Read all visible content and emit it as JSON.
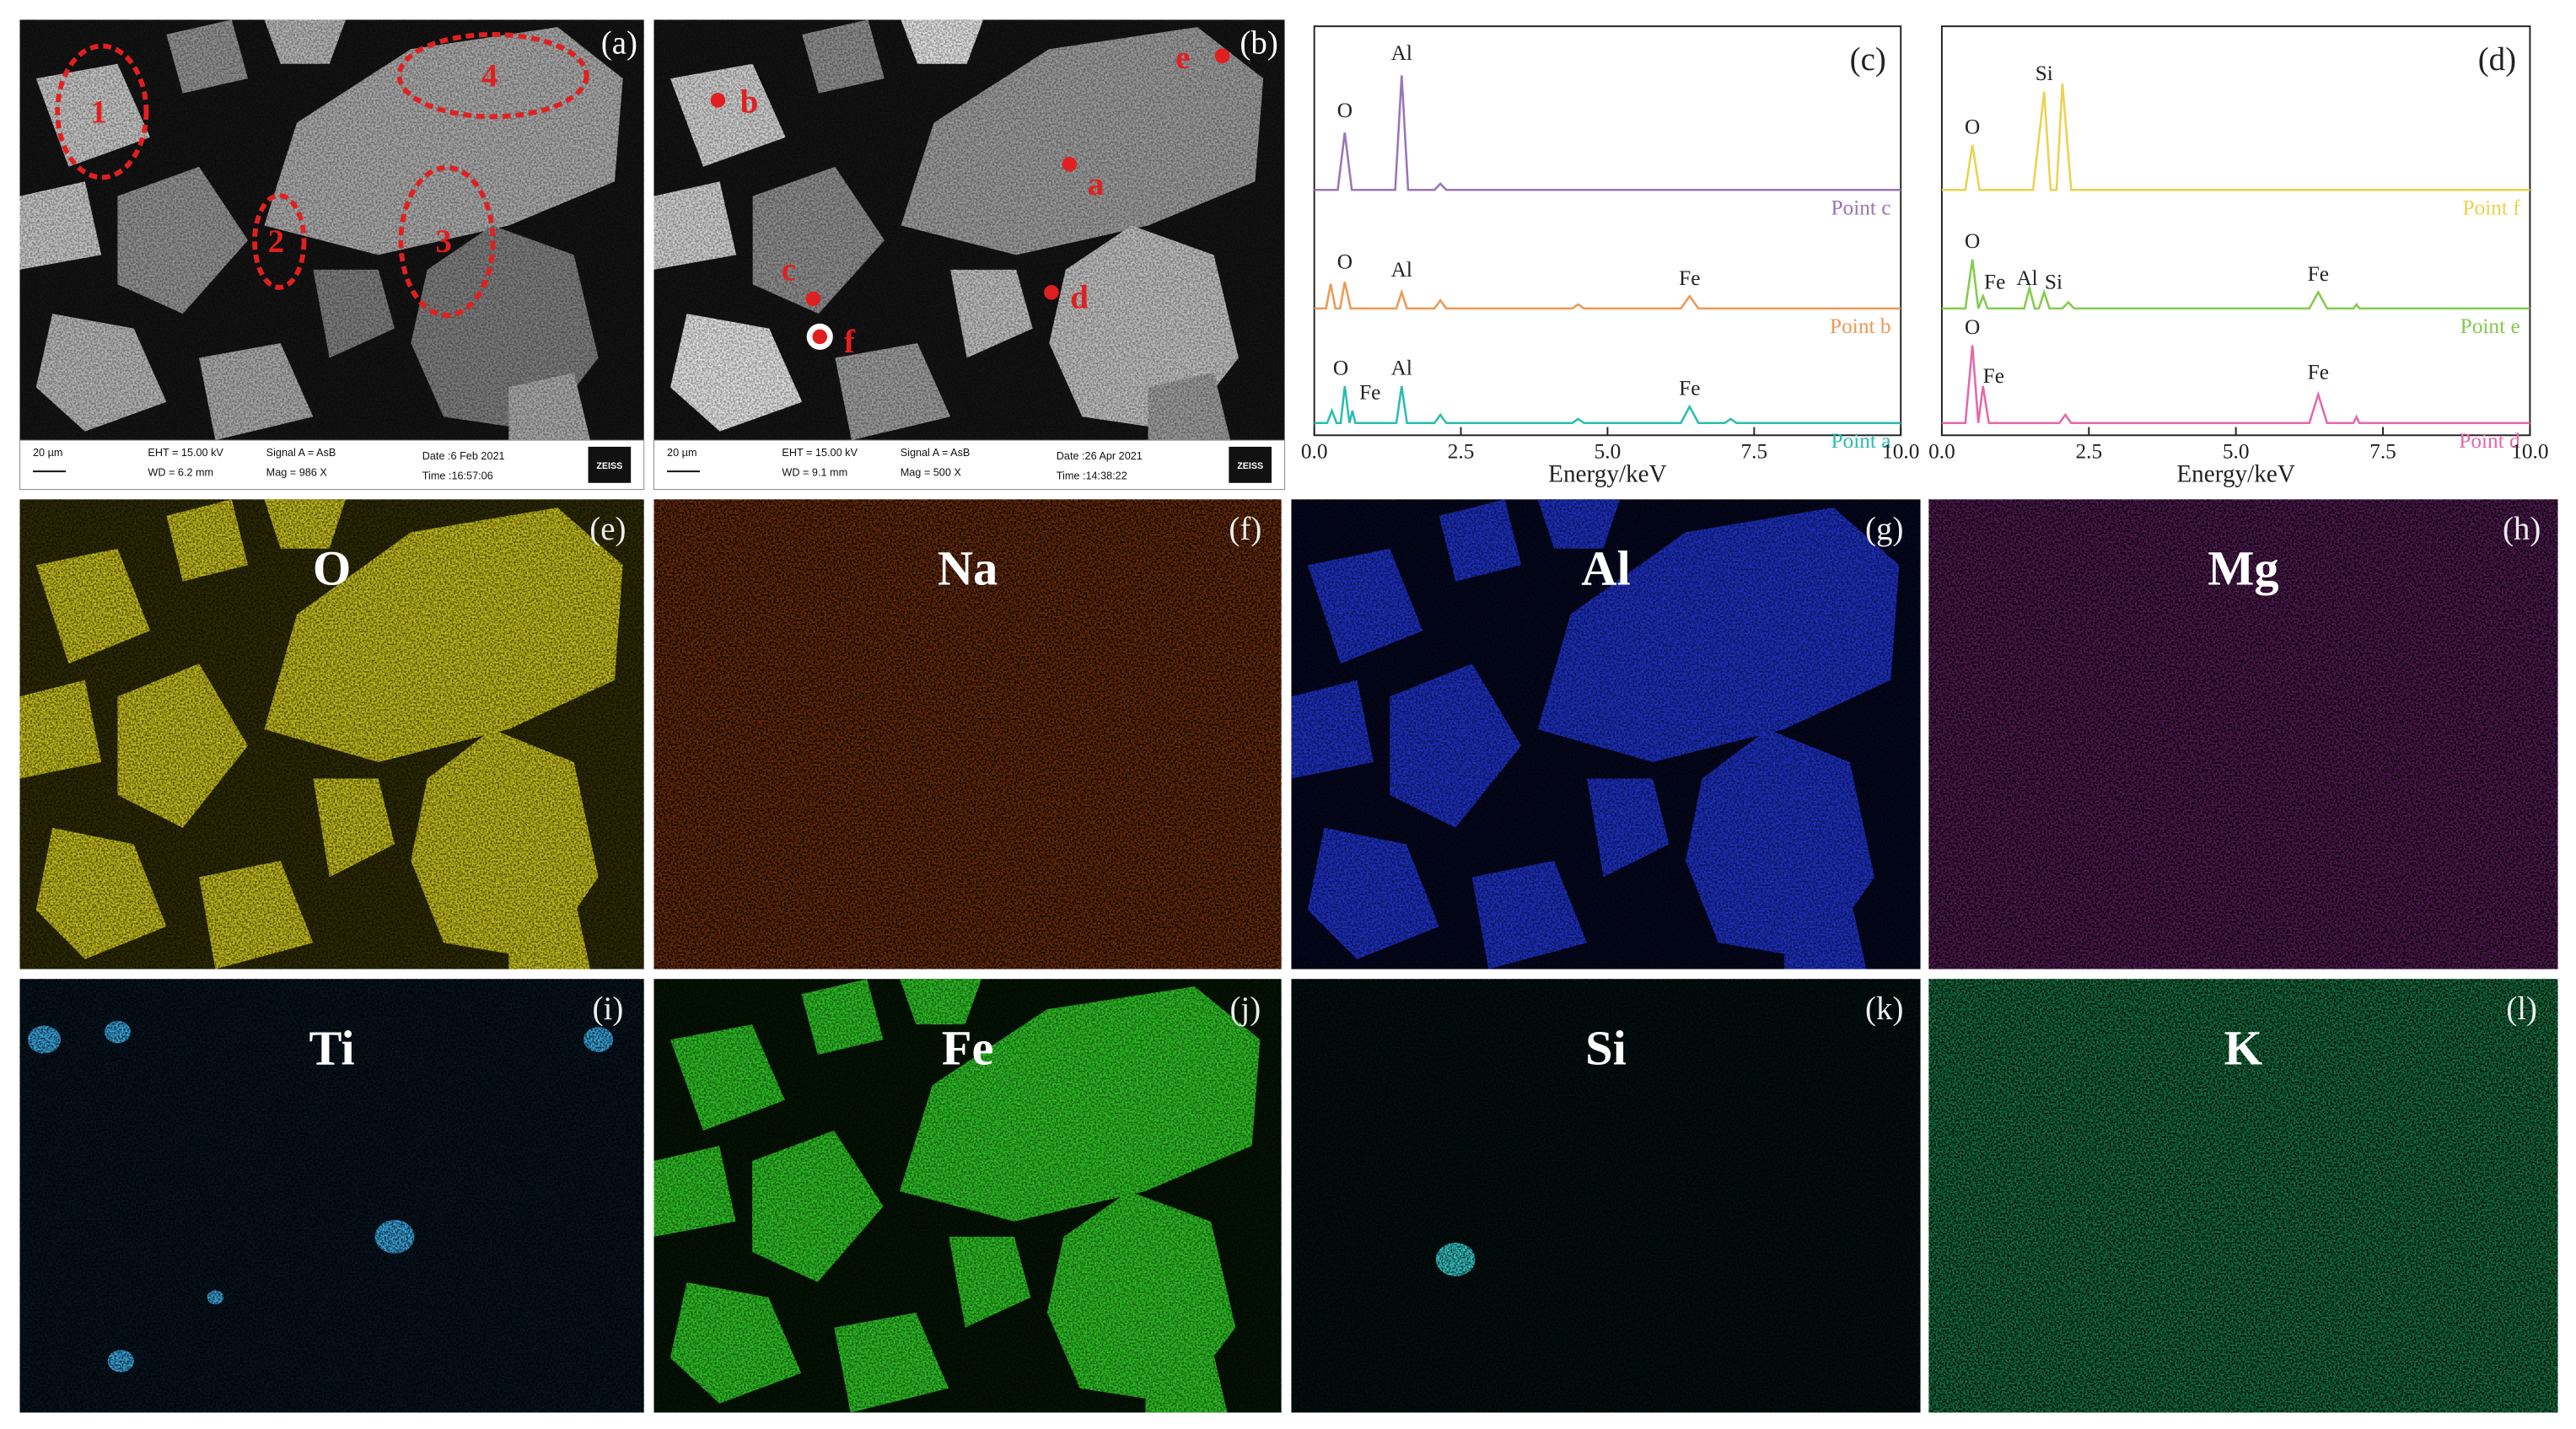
{
  "sem": [
    {
      "label": "(a)",
      "markers": [
        "1",
        "2",
        "4",
        "3"
      ],
      "info": {
        "scale": "20 µm",
        "eht": "EHT = 15.00 kV",
        "wd": "WD = 6.2 mm",
        "signal": "Signal A = AsB",
        "mag": "Mag = 986 X",
        "date": "Date :6 Feb 2021",
        "time": "Time :16:57:06",
        "logo": "ZEISS"
      }
    },
    {
      "label": "(b)",
      "points": [
        "a",
        "b",
        "c",
        "d",
        "e",
        "f"
      ],
      "info": {
        "scale": "20 µm",
        "eht": "EHT = 15.00 kV",
        "wd": "WD = 9.1 mm",
        "signal": "Signal A = AsB",
        "mag": "Mag = 500 X",
        "date": "Date :26 Apr 2021",
        "time": "Time :14:38:22",
        "logo": "ZEISS"
      }
    }
  ],
  "chart_data": [
    {
      "type": "line",
      "title": "(c)",
      "x_label": "Energy/keV",
      "xlim": [
        0,
        10
      ],
      "xticks": [
        {
          "value": 0,
          "label": "0.0"
        },
        2.5,
        {
          "value": 5,
          "label": "5.0"
        },
        7.5,
        {
          "value": 10,
          "label": "10.0"
        }
      ],
      "ylim": [
        0,
        100
      ],
      "series": [
        {
          "name": "Point c",
          "color": "#9a74b8",
          "x": [
            0,
            0.4,
            0.52,
            0.64,
            1.0,
            1.38,
            1.49,
            1.6,
            2.05,
            2.15,
            2.25,
            3,
            10
          ],
          "values": [
            60,
            60,
            74,
            60,
            60,
            60,
            88,
            60,
            60,
            61.5,
            60,
            60,
            60
          ]
        },
        {
          "name": "Point b",
          "color": "#ec9a55",
          "x": [
            0,
            0.2,
            0.28,
            0.36,
            0.44,
            0.52,
            0.62,
            1.0,
            1.4,
            1.49,
            1.58,
            2.05,
            2.15,
            2.25,
            4.4,
            4.5,
            4.6,
            6.25,
            6.4,
            6.55,
            10
          ],
          "values": [
            31,
            31,
            37,
            31,
            31,
            37.5,
            31,
            31,
            31,
            35,
            31,
            31,
            33,
            31,
            31,
            32,
            31,
            31,
            34,
            31,
            31
          ]
        },
        {
          "name": "Point a",
          "color": "#2bbcb2",
          "x": [
            0,
            0.22,
            0.3,
            0.38,
            0.45,
            0.52,
            0.6,
            0.65,
            0.7,
            0.8,
            1.4,
            1.49,
            1.58,
            2.05,
            2.15,
            2.25,
            4.4,
            4.5,
            4.6,
            6.25,
            6.4,
            6.55,
            7,
            7.1,
            7.2,
            10
          ],
          "values": [
            3,
            3,
            6,
            3,
            3,
            12,
            3,
            6,
            3,
            3,
            3,
            12,
            3,
            3,
            5,
            3,
            3,
            4,
            3,
            3,
            7,
            3,
            3,
            4,
            3,
            3
          ]
        }
      ],
      "annotations": [
        {
          "text": "O",
          "x": 0.52,
          "y": 79
        },
        {
          "text": "Al",
          "x": 1.49,
          "y": 93
        },
        {
          "text": "O",
          "x": 0.52,
          "y": 42
        },
        {
          "text": "Al",
          "x": 1.49,
          "y": 40
        },
        {
          "text": "Fe",
          "x": 6.4,
          "y": 38
        },
        {
          "text": "O",
          "x": 0.45,
          "y": 16
        },
        {
          "text": "Fe",
          "x": 0.95,
          "y": 10
        },
        {
          "text": "Al",
          "x": 1.49,
          "y": 16
        },
        {
          "text": "Fe",
          "x": 6.4,
          "y": 11
        }
      ]
    },
    {
      "type": "line",
      "title": "(d)",
      "x_label": "Energy/keV",
      "xlim": [
        0,
        10
      ],
      "xticks": [
        {
          "value": 0,
          "label": "0.0"
        },
        2.5,
        {
          "value": 5,
          "label": "5.0"
        },
        7.5,
        {
          "value": 10,
          "label": "10.0"
        }
      ],
      "ylim": [
        0,
        100
      ],
      "series": [
        {
          "name": "Point f",
          "color": "#ecd24e",
          "x": [
            0,
            0.4,
            0.52,
            0.64,
            1.55,
            1.74,
            1.85,
            1.95,
            2.05,
            2.2,
            10
          ],
          "values": [
            60,
            60,
            71,
            60,
            60,
            84,
            60,
            60,
            86,
            60,
            60
          ]
        },
        {
          "name": "Point e",
          "color": "#82cc4c",
          "x": [
            0,
            0.4,
            0.52,
            0.62,
            0.7,
            0.78,
            1.0,
            1.4,
            1.49,
            1.58,
            1.65,
            1.74,
            1.83,
            2.05,
            2.15,
            2.25,
            6.25,
            6.4,
            6.55,
            7,
            7.05,
            7.1,
            10
          ],
          "values": [
            31,
            31,
            43,
            31,
            34,
            31,
            31,
            31,
            36,
            31,
            31,
            35,
            31,
            31,
            32.5,
            31,
            31,
            35,
            31,
            31,
            32,
            31,
            31
          ]
        },
        {
          "name": "Point d",
          "color": "#e468ac",
          "x": [
            0,
            0.4,
            0.52,
            0.62,
            0.7,
            0.8,
            2.0,
            2.1,
            2.2,
            6.25,
            6.4,
            6.55,
            7,
            7.05,
            7.1,
            10
          ],
          "values": [
            3,
            3,
            22,
            3,
            12,
            3,
            3,
            5,
            3,
            3,
            10,
            3,
            3,
            4.5,
            3,
            3
          ]
        }
      ],
      "annotations": [
        {
          "text": "O",
          "x": 0.52,
          "y": 75
        },
        {
          "text": "Si",
          "x": 1.74,
          "y": 88
        },
        {
          "text": "O",
          "x": 0.52,
          "y": 47
        },
        {
          "text": "Fe",
          "x": 0.9,
          "y": 37
        },
        {
          "text": "Al",
          "x": 1.45,
          "y": 38
        },
        {
          "text": "Si",
          "x": 1.9,
          "y": 37
        },
        {
          "text": "Fe",
          "x": 6.4,
          "y": 39
        },
        {
          "text": "O",
          "x": 0.52,
          "y": 26
        },
        {
          "text": "Fe",
          "x": 0.88,
          "y": 14
        },
        {
          "text": "Fe",
          "x": 6.4,
          "y": 15
        }
      ]
    }
  ],
  "maps": [
    {
      "label": "(e)",
      "element": "O"
    },
    {
      "label": "(f)",
      "element": "Na"
    },
    {
      "label": "(g)",
      "element": "Al"
    },
    {
      "label": "(h)",
      "element": "Mg"
    },
    {
      "label": "(i)",
      "element": "Ti"
    },
    {
      "label": "(j)",
      "element": "Fe"
    },
    {
      "label": "(k)",
      "element": "Si"
    },
    {
      "label": "(l)",
      "element": "K"
    }
  ]
}
